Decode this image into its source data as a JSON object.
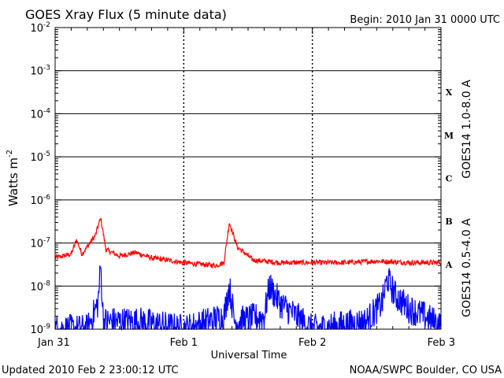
{
  "chart_data": {
    "type": "line",
    "title": "GOES Xray Flux (5 minute data)",
    "begin_label": "Begin:  2010 Jan 31 0000 UTC",
    "xlabel": "Universal Time",
    "ylabel": "Watts m",
    "ylabel_sup": "-2",
    "x_ticks": [
      "Jan 31",
      "Feb 1",
      "Feb 2",
      "Feb 3"
    ],
    "xlim": [
      "2010-01-31T00:00Z",
      "2010-02-03T00:00Z"
    ],
    "y_scale": "log",
    "ylim": [
      1e-09,
      0.01
    ],
    "y_ticks": [
      {
        "base": "10",
        "exp": "-9"
      },
      {
        "base": "10",
        "exp": "-8"
      },
      {
        "base": "10",
        "exp": "-7"
      },
      {
        "base": "10",
        "exp": "-6"
      },
      {
        "base": "10",
        "exp": "-5"
      },
      {
        "base": "10",
        "exp": "-4"
      },
      {
        "base": "10",
        "exp": "-3"
      },
      {
        "base": "10",
        "exp": "-2"
      }
    ],
    "flare_classes": [
      "A",
      "B",
      "C",
      "M",
      "X"
    ],
    "grid": "horizontal",
    "series": [
      {
        "name": "GOES14 1.0-8.0 A",
        "color": "#ff0000",
        "points": [
          [
            "2010-01-31T00:00Z",
            4.5e-08
          ],
          [
            "2010-01-31T03:00Z",
            5.5e-08
          ],
          [
            "2010-01-31T04:00Z",
            1.2e-07
          ],
          [
            "2010-01-31T05:00Z",
            5.5e-08
          ],
          [
            "2010-01-31T07:30Z",
            1.5e-07
          ],
          [
            "2010-01-31T08:30Z",
            3.8e-07
          ],
          [
            "2010-01-31T09:30Z",
            7e-08
          ],
          [
            "2010-01-31T12:00Z",
            5e-08
          ],
          [
            "2010-01-31T15:00Z",
            6e-08
          ],
          [
            "2010-01-31T18:00Z",
            4.5e-08
          ],
          [
            "2010-01-31T21:00Z",
            4e-08
          ],
          [
            "2010-02-01T00:00Z",
            3.5e-08
          ],
          [
            "2010-02-01T03:00Z",
            3.2e-08
          ],
          [
            "2010-02-01T06:00Z",
            3e-08
          ],
          [
            "2010-02-01T07:30Z",
            3.5e-08
          ],
          [
            "2010-02-01T08:30Z",
            3e-07
          ],
          [
            "2010-02-01T10:00Z",
            8e-08
          ],
          [
            "2010-02-01T13:00Z",
            4e-08
          ],
          [
            "2010-02-01T18:00Z",
            3.5e-08
          ],
          [
            "2010-02-02T00:00Z",
            3.5e-08
          ],
          [
            "2010-02-02T06:00Z",
            3.5e-08
          ],
          [
            "2010-02-02T12:00Z",
            3.8e-08
          ],
          [
            "2010-02-02T18:00Z",
            3.5e-08
          ],
          [
            "2010-02-03T00:00Z",
            3.5e-08
          ]
        ]
      },
      {
        "name": "GOES14 0.5-4.0 A",
        "color": "#0000ff",
        "points": [
          [
            "2010-01-31T00:00Z",
            1e-09
          ],
          [
            "2010-01-31T06:00Z",
            1e-09
          ],
          [
            "2010-01-31T08:00Z",
            4e-09
          ],
          [
            "2010-01-31T08:30Z",
            3e-08
          ],
          [
            "2010-01-31T09:00Z",
            1.5e-09
          ],
          [
            "2010-01-31T16:00Z",
            1.5e-09
          ],
          [
            "2010-02-01T00:00Z",
            1e-09
          ],
          [
            "2010-02-01T07:30Z",
            2e-09
          ],
          [
            "2010-02-01T08:30Z",
            1e-08
          ],
          [
            "2010-02-01T09:30Z",
            1.5e-09
          ],
          [
            "2010-02-01T15:00Z",
            2e-09
          ],
          [
            "2010-02-01T16:00Z",
            1e-08
          ],
          [
            "2010-02-01T18:00Z",
            4e-09
          ],
          [
            "2010-02-01T21:00Z",
            2e-09
          ],
          [
            "2010-02-02T00:00Z",
            1e-09
          ],
          [
            "2010-02-02T10:00Z",
            1.5e-09
          ],
          [
            "2010-02-02T13:00Z",
            4e-09
          ],
          [
            "2010-02-02T14:00Z",
            1.5e-08
          ],
          [
            "2010-02-02T15:30Z",
            6e-09
          ],
          [
            "2010-02-02T18:00Z",
            3e-09
          ],
          [
            "2010-02-02T21:00Z",
            2e-09
          ],
          [
            "2010-02-03T00:00Z",
            1.2e-09
          ]
        ]
      }
    ]
  },
  "footer": {
    "updated": "Updated 2010 Feb  2 23:00:12 UTC",
    "credit": "NOAA/SWPC Boulder, CO USA"
  }
}
